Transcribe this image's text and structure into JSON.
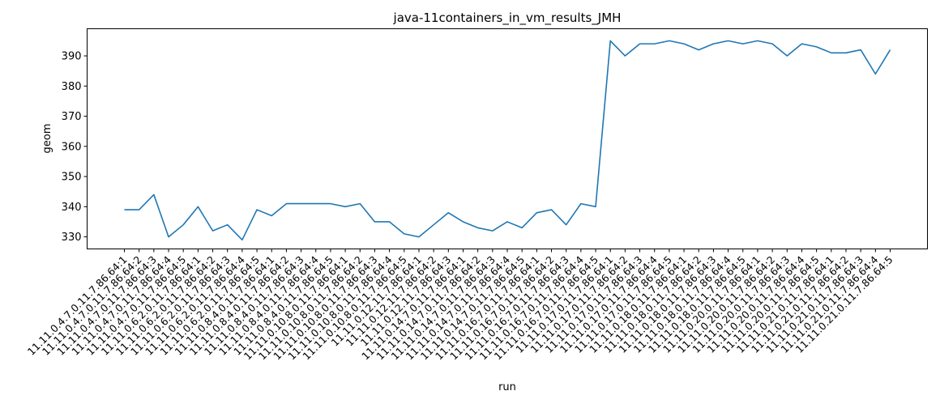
{
  "chart_data": {
    "type": "line",
    "title": "java-11containers_in_vm_results_JMH",
    "xlabel": "run",
    "ylabel": "geom",
    "ylim": [
      326,
      399
    ],
    "yticks": [
      330,
      340,
      350,
      360,
      370,
      380,
      390
    ],
    "grid": false,
    "line_color": "#1f77b4",
    "categories": [
      "11.11.0.4.7.0.11.7.86.64:1",
      "11.11.0.4.7.0.11.7.86.64:2",
      "11.11.0.4.7.0.11.7.86.64:3",
      "11.11.0.4.7.0.11.7.86.64:4",
      "11.11.0.4.7.0.11.7.86.64:5",
      "11.11.0.6.2.0.11.7.86.64:1",
      "11.11.0.6.2.0.11.7.86.64:2",
      "11.11.0.6.2.0.11.7.86.64:3",
      "11.11.0.6.2.0.11.7.86.64:4",
      "11.11.0.6.2.0.11.7.86.64:5",
      "11.11.0.8.4.0.11.7.86.64:1",
      "11.11.0.8.4.0.11.7.86.64:2",
      "11.11.0.8.4.0.11.7.86.64:3",
      "11.11.0.8.4.0.11.7.86.64:4",
      "11.11.0.8.4.0.11.7.86.64:5",
      "11.11.0.10.8.0.11.7.86.64:1",
      "11.11.0.10.8.0.11.7.86.64:2",
      "11.11.0.10.8.0.11.7.86.64:3",
      "11.11.0.10.8.0.11.7.86.64:4",
      "11.11.0.10.8.0.11.7.86.64:5",
      "11.11.0.12.11.7.86.64:1",
      "11.11.0.12.11.7.86.64:2",
      "11.11.0.12.11.7.86.64:3",
      "11.11.0.14.7.0.11.7.86.64:1",
      "11.11.0.14.7.0.11.7.86.64:2",
      "11.11.0.14.7.0.11.7.86.64:3",
      "11.11.0.14.7.0.11.7.86.64:4",
      "11.11.0.14.7.0.11.7.86.64:5",
      "11.11.0.16.7.0.11.7.86.64:1",
      "11.11.0.16.7.0.11.7.86.64:2",
      "11.11.0.16.7.0.11.7.86.64:3",
      "11.11.0.16.7.0.11.7.86.64:4",
      "11.11.0.16.7.0.11.7.86.64:5",
      "11.11.0.17.0.11.7.86.64:1",
      "11.11.0.17.0.11.7.86.64:2",
      "11.11.0.17.0.11.7.86.64:3",
      "11.11.0.17.0.11.7.86.64:4",
      "11.11.0.17.0.11.7.86.64:5",
      "11.11.0.18.0.11.7.86.64:1",
      "11.11.0.18.0.11.7.86.64:2",
      "11.11.0.18.0.11.7.86.64:3",
      "11.11.0.18.0.11.7.86.64:4",
      "11.11.0.18.0.11.7.86.64:5",
      "11.11.0.20.0.11.7.86.64:1",
      "11.11.0.20.0.11.7.86.64:2",
      "11.11.0.20.0.11.7.86.64:3",
      "11.11.0.20.0.11.7.86.64:4",
      "11.11.0.20.0.11.7.86.64:5",
      "11.11.0.21.0.11.7.86.64:1",
      "11.11.0.21.0.11.7.86.64:2",
      "11.11.0.21.0.11.7.86.64:3",
      "11.11.0.21.0.11.7.86.64:4",
      "11.11.0.21.0.11.7.86.64:5"
    ],
    "values": [
      339,
      339,
      344,
      330,
      334,
      340,
      332,
      334,
      329,
      339,
      337,
      341,
      341,
      341,
      341,
      340,
      341,
      335,
      335,
      331,
      330,
      334,
      338,
      335,
      333,
      332,
      335,
      333,
      338,
      339,
      334,
      341,
      340,
      395,
      390,
      394,
      394,
      395,
      394,
      392,
      394,
      395,
      394,
      395,
      394,
      390,
      394,
      393,
      391,
      391,
      392,
      384,
      392
    ]
  }
}
